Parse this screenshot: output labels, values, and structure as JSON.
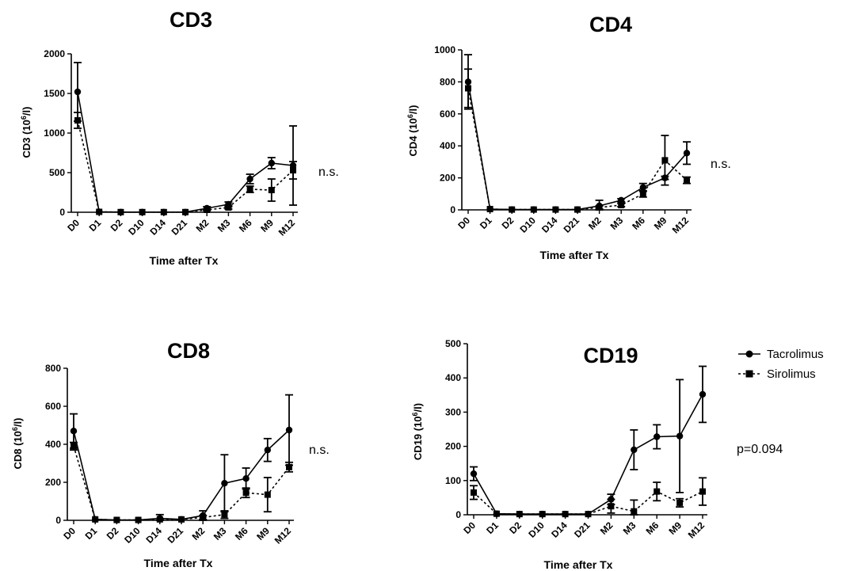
{
  "legend": {
    "entries": [
      {
        "name": "Tacrolimus",
        "marker": "circle",
        "line": "solid"
      },
      {
        "name": "Sirolimus",
        "marker": "square",
        "line": "dashed"
      }
    ]
  },
  "colors": {
    "line": "#000000",
    "background": "#ffffff"
  },
  "chart_data": [
    {
      "type": "line",
      "title": "CD3",
      "ylabel_text": "CD3 (10",
      "ylabel_sup": "6",
      "ylabel_end": "/l)",
      "xlabel": "Time after Tx",
      "categories": [
        "D0",
        "D1",
        "D2",
        "D10",
        "D14",
        "D21",
        "M2",
        "M3",
        "M6",
        "M9",
        "M12"
      ],
      "ylim": [
        0,
        2000
      ],
      "yticks": [
        0,
        500,
        1000,
        1500,
        2000
      ],
      "annotation": "n.s.",
      "series": [
        {
          "name": "Tacrolimus",
          "values": [
            1520,
            5,
            2,
            2,
            2,
            2,
            50,
            100,
            420,
            620,
            590
          ],
          "err": [
            370,
            0,
            0,
            0,
            0,
            0,
            20,
            30,
            60,
            70,
            500
          ]
        },
        {
          "name": "Sirolimus",
          "values": [
            1160,
            5,
            2,
            2,
            2,
            2,
            30,
            60,
            290,
            280,
            530
          ],
          "err": [
            100,
            0,
            0,
            0,
            0,
            0,
            10,
            20,
            40,
            140,
            110
          ]
        }
      ]
    },
    {
      "type": "line",
      "title": "CD4",
      "ylabel_text": "CD4 (10",
      "ylabel_sup": "6",
      "ylabel_end": "/l)",
      "xlabel": "Time after Tx",
      "categories": [
        "D0",
        "D1",
        "D2",
        "D10",
        "D14",
        "D21",
        "M2",
        "M3",
        "M6",
        "M9",
        "M12"
      ],
      "ylim": [
        0,
        1000
      ],
      "yticks": [
        0,
        200,
        400,
        600,
        800,
        1000
      ],
      "annotation": "n.s.",
      "series": [
        {
          "name": "Tacrolimus",
          "values": [
            800,
            5,
            2,
            2,
            2,
            2,
            25,
            60,
            140,
            200,
            355
          ],
          "err": [
            170,
            0,
            0,
            0,
            0,
            0,
            35,
            10,
            25,
            10,
            70
          ]
        },
        {
          "name": "Sirolimus",
          "values": [
            760,
            5,
            2,
            2,
            2,
            2,
            15,
            30,
            100,
            310,
            185
          ],
          "err": [
            120,
            0,
            0,
            0,
            0,
            0,
            10,
            10,
            20,
            155,
            20
          ]
        }
      ]
    },
    {
      "type": "line",
      "title": "CD8",
      "ylabel_text": "CD8 (10",
      "ylabel_sup": "6",
      "ylabel_end": "/l)",
      "xlabel": "Time after Tx",
      "categories": [
        "D0",
        "D1",
        "D2",
        "D10",
        "D14",
        "D21",
        "M2",
        "M3",
        "M6",
        "M9",
        "M12"
      ],
      "ylim": [
        0,
        800
      ],
      "yticks": [
        0,
        200,
        400,
        600,
        800
      ],
      "annotation": "n.s.",
      "series": [
        {
          "name": "Tacrolimus",
          "values": [
            470,
            5,
            2,
            2,
            10,
            5,
            25,
            195,
            220,
            370,
            475
          ],
          "err": [
            90,
            0,
            0,
            0,
            20,
            0,
            25,
            150,
            55,
            60,
            185
          ]
        },
        {
          "name": "Sirolimus",
          "values": [
            390,
            5,
            2,
            2,
            5,
            5,
            15,
            30,
            145,
            135,
            280
          ],
          "err": [
            20,
            0,
            0,
            0,
            0,
            0,
            10,
            20,
            25,
            90,
            25
          ]
        }
      ]
    },
    {
      "type": "line",
      "title": "CD19",
      "ylabel_text": "CD19 (10",
      "ylabel_sup": "6",
      "ylabel_end": "/l)",
      "xlabel": "Time after Tx",
      "categories": [
        "D0",
        "D1",
        "D2",
        "D10",
        "D14",
        "D21",
        "M2",
        "M3",
        "M6",
        "M9",
        "M12"
      ],
      "ylim": [
        0,
        500
      ],
      "yticks": [
        0,
        100,
        200,
        300,
        400,
        500
      ],
      "annotation": "p=0.094",
      "series": [
        {
          "name": "Tacrolimus",
          "values": [
            120,
            3,
            2,
            2,
            2,
            2,
            45,
            190,
            228,
            230,
            352
          ],
          "err": [
            20,
            0,
            0,
            0,
            0,
            0,
            15,
            58,
            35,
            165,
            82
          ]
        },
        {
          "name": "Sirolimus",
          "values": [
            65,
            3,
            2,
            2,
            2,
            2,
            25,
            10,
            68,
            35,
            68
          ],
          "err": [
            20,
            0,
            0,
            0,
            0,
            0,
            20,
            33,
            27,
            12,
            40
          ]
        }
      ]
    }
  ]
}
